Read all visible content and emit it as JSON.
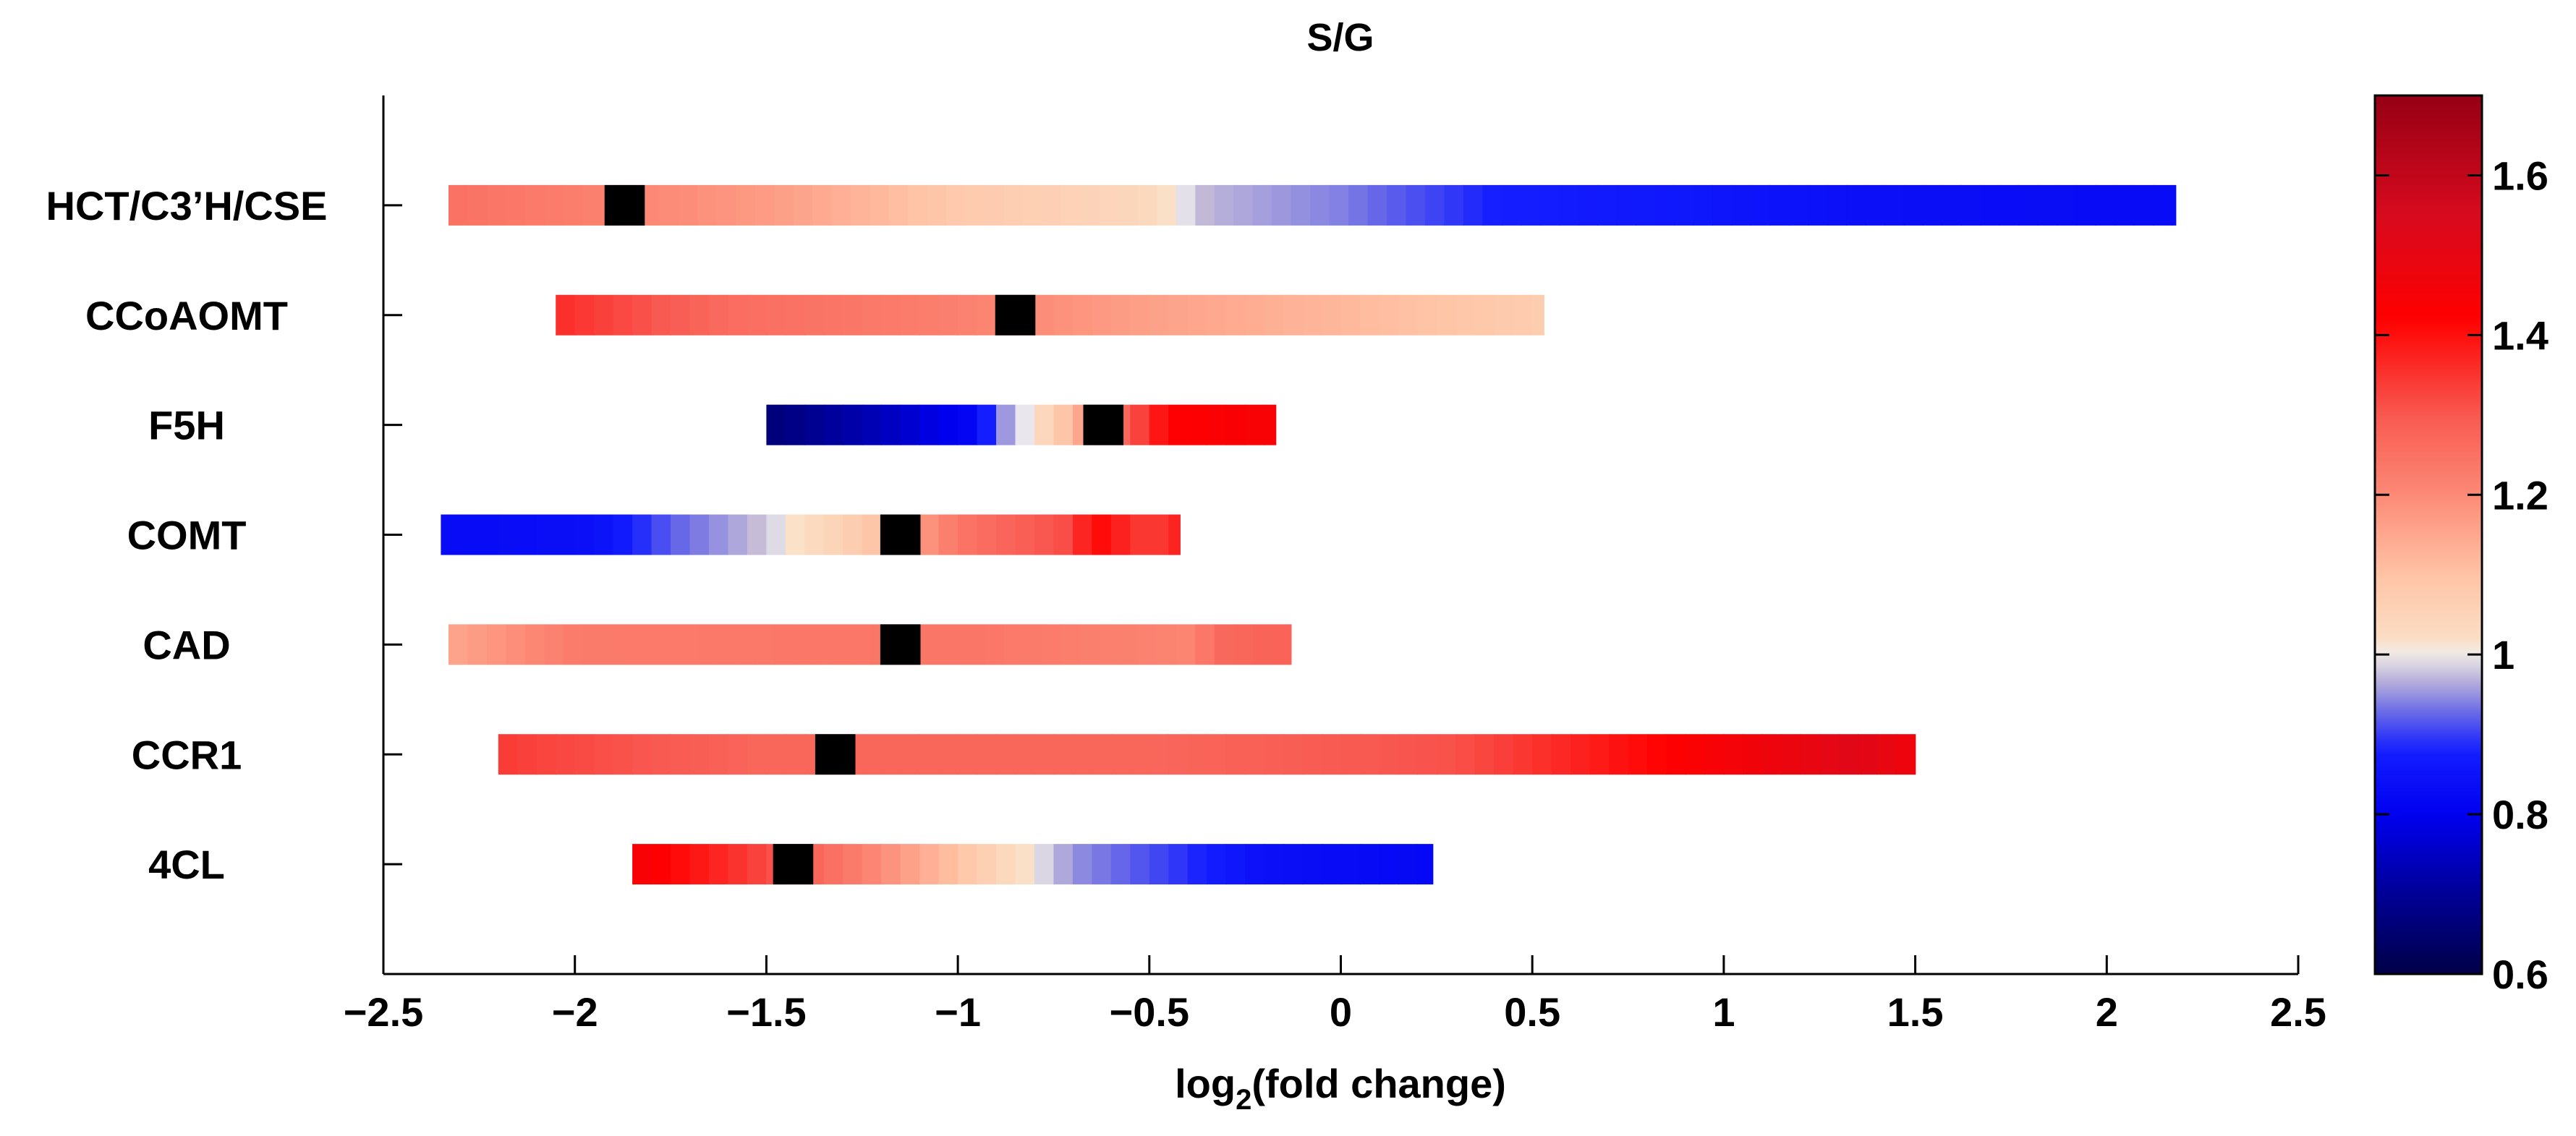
{
  "chart_data": {
    "type": "heatmap",
    "title": "S/G",
    "xlabel_prefix": "log",
    "xlabel_subscript": "2",
    "xlabel_suffix": "(fold change)",
    "xlim": [
      -2.5,
      2.5
    ],
    "x_ticks": [
      -2.5,
      -2,
      -1.5,
      -1,
      -0.5,
      0,
      0.5,
      1,
      1.5,
      2,
      2.5
    ],
    "x_tick_labels": [
      "−2.5",
      "−2",
      "−1.5",
      "−1",
      "−0.5",
      "0",
      "0.5",
      "1",
      "1.5",
      "2",
      "2.5"
    ],
    "colorbar": {
      "range": [
        0.6,
        1.7
      ],
      "ticks": [
        0.6,
        0.8,
        1.0,
        1.2,
        1.4,
        1.6
      ],
      "tick_labels": [
        "0.6",
        "0.8",
        "1",
        "1.2",
        "1.4",
        "1.6"
      ]
    },
    "baseline_marker_color": "#000000",
    "genes": [
      {
        "name": "HCT/C3’H/CSE",
        "baseline_x": -1.87,
        "points": [
          [
            -2.33,
            1.25
          ],
          [
            -1.95,
            1.22
          ],
          [
            -1.5,
            1.17
          ],
          [
            -1.0,
            1.08
          ],
          [
            -0.52,
            1.04
          ],
          [
            -0.35,
            0.97
          ],
          [
            0.0,
            0.94
          ],
          [
            0.4,
            0.88
          ],
          [
            0.9,
            0.86
          ],
          [
            1.35,
            0.84
          ],
          [
            2.18,
            0.83
          ]
        ]
      },
      {
        "name": "CCoAOMT",
        "baseline_x": -0.85,
        "points": [
          [
            -2.05,
            1.36
          ],
          [
            -1.6,
            1.26
          ],
          [
            -1.0,
            1.22
          ],
          [
            -0.5,
            1.16
          ],
          [
            0.0,
            1.12
          ],
          [
            0.53,
            1.07
          ]
        ]
      },
      {
        "name": "F5H",
        "baseline_x": -0.62,
        "points": [
          [
            -1.5,
            0.66
          ],
          [
            -1.2,
            0.74
          ],
          [
            -0.96,
            0.82
          ],
          [
            -0.88,
            0.95
          ],
          [
            -0.75,
            1.06
          ],
          [
            -0.55,
            1.3
          ],
          [
            -0.45,
            1.42
          ],
          [
            -0.17,
            1.45
          ]
        ]
      },
      {
        "name": "COMT",
        "baseline_x": -1.15,
        "points": [
          [
            -2.35,
            0.83
          ],
          [
            -1.95,
            0.84
          ],
          [
            -1.75,
            0.92
          ],
          [
            -1.5,
            0.98
          ],
          [
            -1.2,
            1.1
          ],
          [
            -1.0,
            1.24
          ],
          [
            -0.7,
            1.32
          ],
          [
            -0.65,
            1.42
          ],
          [
            -0.5,
            1.33
          ],
          [
            -0.42,
            1.38
          ]
        ]
      },
      {
        "name": "CAD",
        "baseline_x": -1.15,
        "points": [
          [
            -2.33,
            1.15
          ],
          [
            -2.0,
            1.23
          ],
          [
            -1.0,
            1.24
          ],
          [
            -0.4,
            1.21
          ],
          [
            -0.3,
            1.27
          ],
          [
            -0.13,
            1.28
          ]
        ]
      },
      {
        "name": "CCR1",
        "baseline_x": -1.32,
        "points": [
          [
            -2.2,
            1.34
          ],
          [
            -1.5,
            1.27
          ],
          [
            -0.5,
            1.27
          ],
          [
            0.3,
            1.31
          ],
          [
            0.7,
            1.39
          ],
          [
            1.0,
            1.45
          ],
          [
            1.35,
            1.52
          ],
          [
            1.5,
            1.47
          ]
        ]
      },
      {
        "name": "4CL",
        "baseline_x": -1.43,
        "points": [
          [
            -1.85,
            1.45
          ],
          [
            -1.6,
            1.36
          ],
          [
            -1.25,
            1.22
          ],
          [
            -0.9,
            1.05
          ],
          [
            -0.7,
            0.95
          ],
          [
            -0.4,
            0.89
          ],
          [
            -0.2,
            0.84
          ],
          [
            0.24,
            0.82
          ]
        ]
      }
    ]
  }
}
